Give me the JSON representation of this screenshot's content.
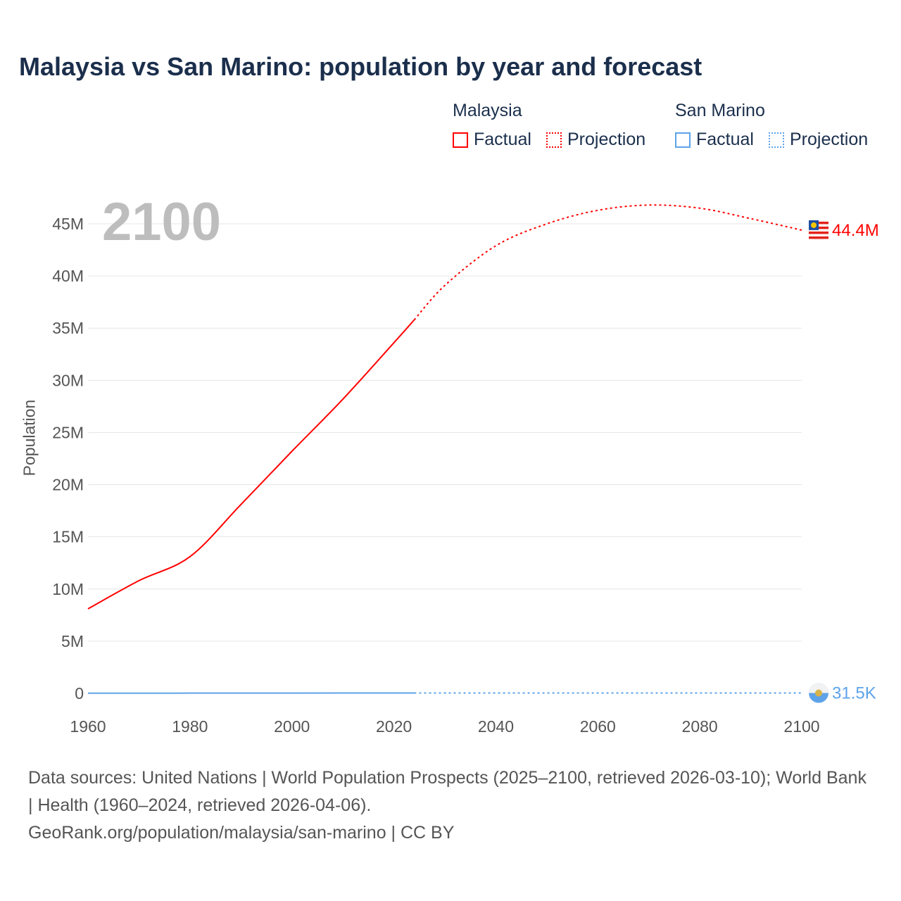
{
  "title": "Malaysia vs San Marino: population by year and forecast",
  "current_year": "2100",
  "legend": {
    "groups": [
      {
        "name": "Malaysia",
        "factual": "Factual",
        "projection": "Projection",
        "color": "#ff0000"
      },
      {
        "name": "San Marino",
        "factual": "Factual",
        "projection": "Projection",
        "color": "#5ea3e8"
      }
    ]
  },
  "footer": {
    "sources": "Data sources: United Nations | World Population Prospects (2025–2100, retrieved 2026-03-10); World Bank | Health (1960–2024, retrieved 2026-04-06).",
    "link": "GeoRank.org/population/malaysia/san-marino | CC BY"
  },
  "chart_data": {
    "type": "line",
    "title": "Malaysia vs San Marino: population by year and forecast",
    "xlabel": "",
    "ylabel": "Population",
    "xlim": [
      1960,
      2100
    ],
    "ylim": [
      0,
      47000000
    ],
    "x_ticks": [
      "1960",
      "1980",
      "2000",
      "2020",
      "2040",
      "2060",
      "2080",
      "2100"
    ],
    "x_tick_values": [
      1960,
      1980,
      2000,
      2020,
      2040,
      2060,
      2080,
      2100
    ],
    "y_ticks": [
      "0",
      "5M",
      "10M",
      "15M",
      "20M",
      "25M",
      "30M",
      "35M",
      "40M",
      "45M"
    ],
    "y_tick_values": [
      0,
      5000000,
      10000000,
      15000000,
      20000000,
      25000000,
      30000000,
      35000000,
      40000000,
      45000000
    ],
    "grid": true,
    "series": [
      {
        "name": "Malaysia",
        "color": "#ff0000",
        "end_label": "44.4M",
        "factual": {
          "x": [
            1960,
            1970,
            1980,
            1990,
            2000,
            2010,
            2020,
            2024
          ],
          "y": [
            8100000,
            10800000,
            13100000,
            18100000,
            23200000,
            28200000,
            33600000,
            35800000
          ]
        },
        "projection": {
          "x": [
            2024,
            2030,
            2040,
            2050,
            2060,
            2070,
            2080,
            2090,
            2100
          ],
          "y": [
            35800000,
            39100000,
            42900000,
            45000000,
            46300000,
            46800000,
            46500000,
            45500000,
            44400000
          ]
        }
      },
      {
        "name": "San Marino",
        "color": "#5ea3e8",
        "end_label": "31.5K",
        "factual": {
          "x": [
            1960,
            1980,
            2000,
            2024
          ],
          "y": [
            15400,
            21300,
            27100,
            33900
          ]
        },
        "projection": {
          "x": [
            2024,
            2050,
            2075,
            2100
          ],
          "y": [
            33900,
            33500,
            32500,
            31500
          ]
        }
      }
    ]
  }
}
